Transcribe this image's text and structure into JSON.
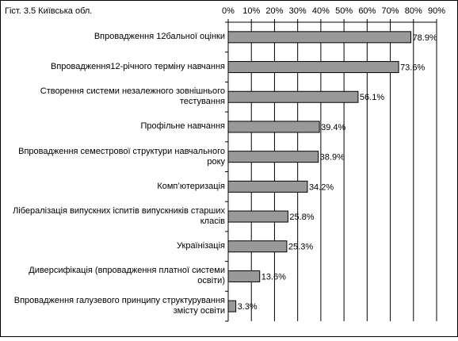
{
  "chart_data": {
    "type": "barh",
    "title": "Гіст. 3.5 Київська обл.",
    "categories": [
      "Впровадження 12бальної оцінки",
      "Впровадження12-річного терміну навчання",
      "Створення системи незалежного зовнішнього тестування",
      "Профільне навчання",
      "Впровадження семестрової структури навчального року",
      "Комп’ютеризація",
      "Лібералізація випускних іспитів випускників старших класів",
      "Українізація",
      "Диверсифікація (впровадження платної системи освіти)",
      "Впровадження галузевого принципу структурування змісту освіти"
    ],
    "values": [
      78.9,
      73.6,
      56.1,
      39.4,
      38.9,
      34.2,
      25.8,
      25.3,
      13.6,
      3.3
    ],
    "value_labels": [
      "78.9%",
      "73.6%",
      "56.1%",
      "39.4%",
      "38.9%",
      "34.2%",
      "25.8%",
      "25.3%",
      "13.6%",
      "3.3%"
    ],
    "color": "#999999",
    "xlim": [
      0,
      90
    ],
    "xticks": [
      {
        "value": 0,
        "label": "0%"
      },
      {
        "value": 10,
        "label": "10%"
      },
      {
        "value": 20,
        "label": "20%"
      },
      {
        "value": 30,
        "label": "30%"
      },
      {
        "value": 40,
        "label": "40%"
      },
      {
        "value": 50,
        "label": "50%"
      },
      {
        "value": 60,
        "label": "60%"
      },
      {
        "value": 70,
        "label": "70%"
      },
      {
        "value": 80,
        "label": "80%"
      },
      {
        "value": 90,
        "label": "90%"
      }
    ],
    "grid": true
  }
}
